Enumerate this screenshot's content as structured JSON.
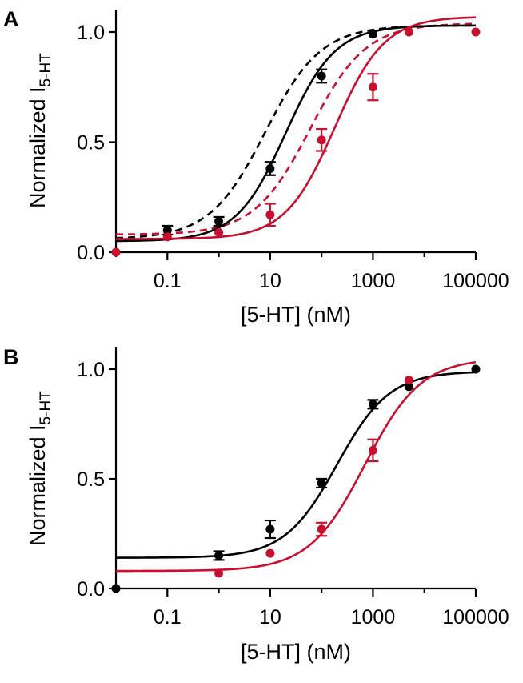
{
  "chart_data": [
    {
      "panel": "A",
      "type": "scatter",
      "xscale": "log",
      "xlim": [
        0.01,
        100000
      ],
      "ylim": [
        0,
        1.05
      ],
      "xticks": [
        0.1,
        10,
        1000,
        100000
      ],
      "xtick_labels": [
        "0.1",
        "10",
        "1000",
        "100000"
      ],
      "yticks": [
        0.0,
        0.5,
        1.0
      ],
      "ytick_labels": [
        "0.0",
        "0.5",
        "1.0"
      ],
      "xlabel": "[5-HT] (nM)",
      "ylabel_main": "Normalized I",
      "ylabel_sub": "5-HT",
      "grid": false,
      "series": [
        {
          "color": "#000000",
          "points": [
            {
              "x": 0.1,
              "y": 0.1,
              "err": 0.02
            },
            {
              "x": 1,
              "y": 0.14,
              "err": 0.02
            },
            {
              "x": 10,
              "y": 0.38,
              "err": 0.03
            },
            {
              "x": 100,
              "y": 0.8,
              "err": 0.03
            },
            {
              "x": 1000,
              "y": 0.99,
              "err": 0
            }
          ],
          "fit": {
            "bottom": 0.05,
            "top": 1.03,
            "ec50": 20,
            "hill": 0.9,
            "dashed": false
          }
        },
        {
          "color": "#c8102e",
          "points": [
            {
              "x": 0.01,
              "y": 0.0,
              "err": 0
            },
            {
              "x": 0.1,
              "y": 0.07,
              "err": 0
            },
            {
              "x": 1,
              "y": 0.09,
              "err": 0
            },
            {
              "x": 10,
              "y": 0.17,
              "err": 0.05
            },
            {
              "x": 100,
              "y": 0.51,
              "err": 0.05
            },
            {
              "x": 1000,
              "y": 0.75,
              "err": 0.06
            },
            {
              "x": 5000,
              "y": 1.0,
              "err": 0
            },
            {
              "x": 100000,
              "y": 1.0,
              "err": 0
            }
          ],
          "fit": {
            "bottom": 0.06,
            "top": 1.07,
            "ec50": 180,
            "hill": 0.9,
            "dashed": false
          }
        },
        {
          "color": "#000000",
          "points": [],
          "fit": {
            "bottom": 0.06,
            "top": 1.03,
            "ec50": 8,
            "hill": 0.8,
            "dashed": true
          }
        },
        {
          "color": "#c8102e",
          "points": [],
          "fit": {
            "bottom": 0.08,
            "top": 1.04,
            "ec50": 60,
            "hill": 0.8,
            "dashed": true
          }
        }
      ]
    },
    {
      "panel": "B",
      "type": "scatter",
      "xscale": "log",
      "xlim": [
        0.01,
        100000
      ],
      "ylim": [
        0,
        1.05
      ],
      "xticks": [
        0.1,
        10,
        1000,
        100000
      ],
      "xtick_labels": [
        "0.1",
        "10",
        "1000",
        "100000"
      ],
      "yticks": [
        0.0,
        0.5,
        1.0
      ],
      "ytick_labels": [
        "0.0",
        "0.5",
        "1.0"
      ],
      "xlabel": "[5-HT] (nM)",
      "ylabel_main": "Normalized I",
      "ylabel_sub": "5-HT",
      "grid": false,
      "series": [
        {
          "color": "#000000",
          "points": [
            {
              "x": 0.01,
              "y": 0.0,
              "err": 0
            },
            {
              "x": 1,
              "y": 0.15,
              "err": 0.02
            },
            {
              "x": 10,
              "y": 0.27,
              "err": 0.04
            },
            {
              "x": 100,
              "y": 0.48,
              "err": 0.02
            },
            {
              "x": 1000,
              "y": 0.84,
              "err": 0.02
            },
            {
              "x": 5000,
              "y": 0.92,
              "err": 0
            },
            {
              "x": 100000,
              "y": 1.0,
              "err": 0
            }
          ],
          "fit": {
            "bottom": 0.14,
            "top": 0.99,
            "ec50": 200,
            "hill": 0.85,
            "dashed": false
          }
        },
        {
          "color": "#c8102e",
          "points": [
            {
              "x": 1,
              "y": 0.07,
              "err": 0
            },
            {
              "x": 10,
              "y": 0.16,
              "err": 0
            },
            {
              "x": 100,
              "y": 0.27,
              "err": 0.03
            },
            {
              "x": 1000,
              "y": 0.63,
              "err": 0.05
            },
            {
              "x": 5000,
              "y": 0.95,
              "err": 0
            }
          ],
          "fit": {
            "bottom": 0.08,
            "top": 1.05,
            "ec50": 700,
            "hill": 0.8,
            "dashed": false
          }
        }
      ]
    }
  ]
}
